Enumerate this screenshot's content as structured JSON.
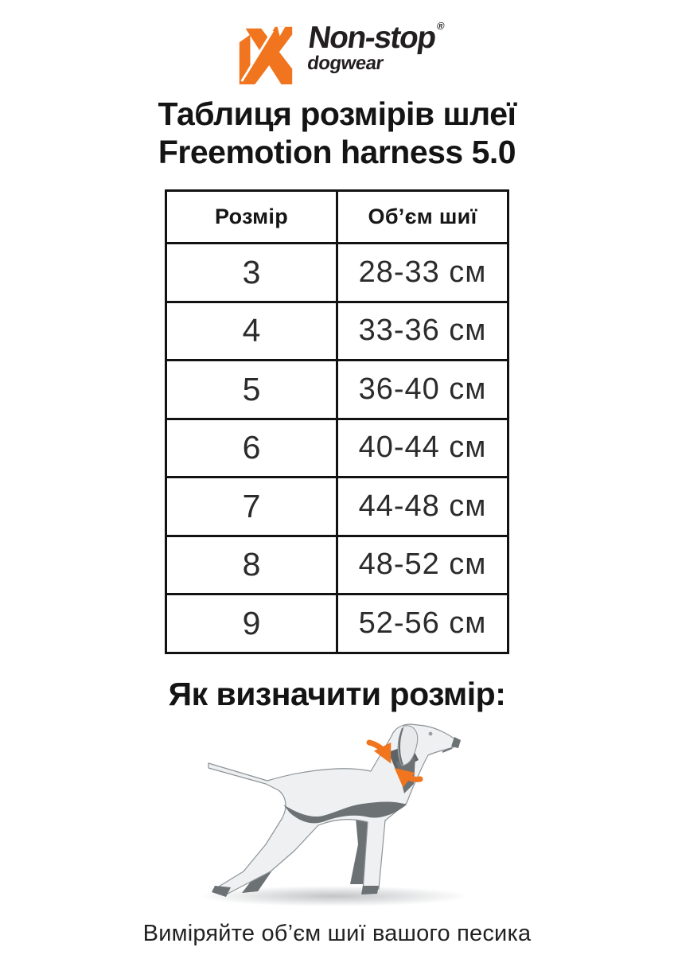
{
  "logo": {
    "brand": "Non-stop",
    "registered": "®",
    "sub": "dogwear",
    "accent_orange": "#F0751E",
    "dark": "#231F20"
  },
  "title": {
    "line1": "Таблиця розмірів шлеї",
    "line2": "Freemotion harness 5.0"
  },
  "table": {
    "headers": [
      "Розмір",
      "Об’єм шиї"
    ],
    "rows": [
      [
        "3",
        "28-33 см"
      ],
      [
        "4",
        "33-36 см"
      ],
      [
        "5",
        "36-40 см"
      ],
      [
        "6",
        "40-44 см"
      ],
      [
        "7",
        "44-48 см"
      ],
      [
        "8",
        "48-52 см"
      ],
      [
        "9",
        "52-56 см"
      ]
    ]
  },
  "how_to": {
    "heading": "Як визначити розмір:",
    "caption": "Виміряйте об’єм шиї вашого песика"
  },
  "illustration": {
    "subject": "dog-neck-measurement",
    "body_gray": "#EEF0F1",
    "shade_gray": "#6C7174",
    "arrow_orange": "#F0751E"
  }
}
